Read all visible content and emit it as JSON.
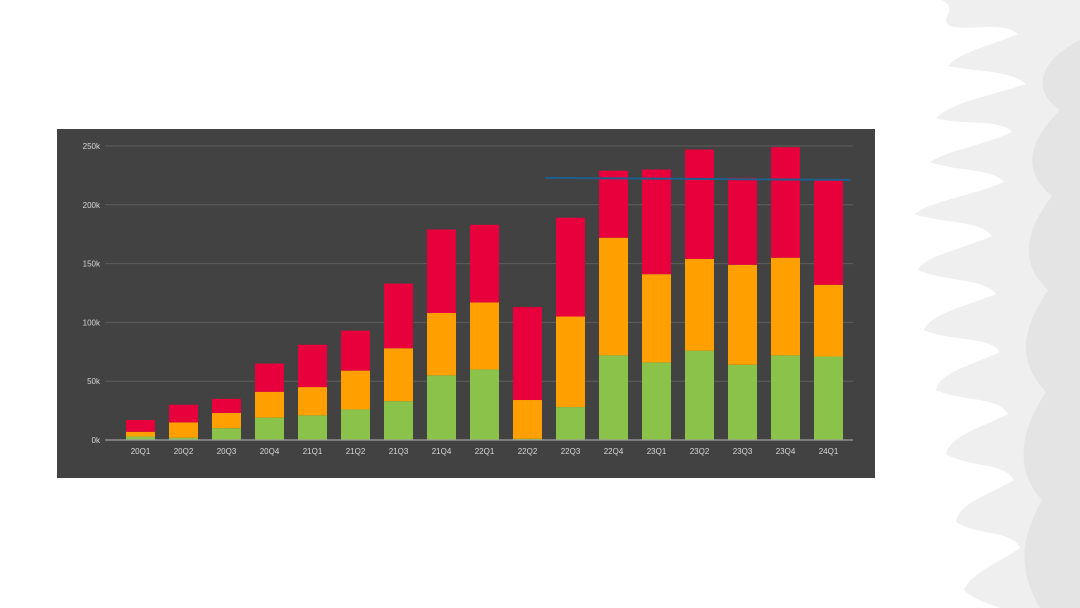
{
  "chart_data": {
    "type": "bar",
    "stacked": true,
    "title": "",
    "xlabel": "",
    "ylabel": "",
    "ylim": [
      0,
      250000
    ],
    "yticks": [
      0,
      50000,
      100000,
      150000,
      200000,
      250000
    ],
    "ytick_labels": [
      "0k",
      "50k",
      "100k",
      "150k",
      "200k",
      "250k"
    ],
    "grid": true,
    "legend": "none",
    "categories": [
      "20Q1",
      "20Q2",
      "20Q3",
      "20Q4",
      "21Q1",
      "21Q2",
      "21Q3",
      "21Q4",
      "22Q1",
      "22Q2",
      "22Q3",
      "22Q4",
      "23Q1",
      "23Q2",
      "23Q3",
      "23Q4",
      "24Q1"
    ],
    "series": [
      {
        "name": "green",
        "color": "#8bc34a",
        "values": [
          3000,
          2000,
          10000,
          19000,
          21000,
          26000,
          33000,
          55000,
          60000,
          1000,
          28000,
          72000,
          66000,
          76000,
          64000,
          72000,
          71000
        ]
      },
      {
        "name": "orange",
        "color": "#ffa000",
        "values": [
          4000,
          13000,
          13000,
          22000,
          24000,
          33000,
          45000,
          53000,
          57000,
          33000,
          77000,
          100000,
          75000,
          78000,
          85000,
          83000,
          61000
        ]
      },
      {
        "name": "red",
        "color": "#e8003d",
        "values": [
          10000,
          15000,
          12000,
          24000,
          36000,
          34000,
          55000,
          71000,
          66000,
          79000,
          84000,
          57000,
          89000,
          93000,
          74000,
          94000,
          89000
        ]
      }
    ],
    "reference_line": {
      "value": 222000,
      "color": "#1f5f8b",
      "from_category": "22Q3",
      "to_category": "24Q1"
    }
  },
  "theme": {
    "panel_background": "#424242",
    "gridline_color": "#5e5e5e",
    "axis_line_color": "#9e9e9e",
    "tick_text_color": "#d6d6d6",
    "brush_color": "#eeeeee"
  }
}
